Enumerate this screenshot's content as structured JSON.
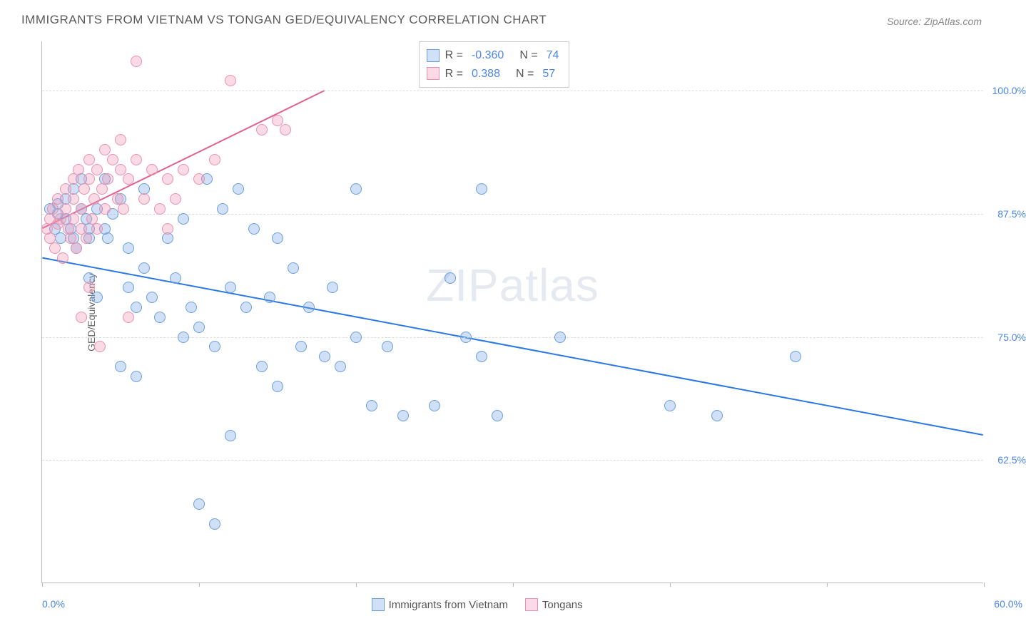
{
  "title": "IMMIGRANTS FROM VIETNAM VS TONGAN GED/EQUIVALENCY CORRELATION CHART",
  "source": "Source: ZipAtlas.com",
  "watermark_a": "ZIP",
  "watermark_b": "atlas",
  "chart": {
    "type": "scatter",
    "ylabel": "GED/Equivalency",
    "xlim": [
      0,
      60
    ],
    "ylim": [
      50,
      105
    ],
    "xtick_positions": [
      0,
      10,
      20,
      30,
      40,
      50,
      60
    ],
    "x_axis_left_label": "0.0%",
    "x_axis_right_label": "60.0%",
    "y_gridlines": [
      62.5,
      75.0,
      87.5,
      100.0
    ],
    "y_labels": [
      "62.5%",
      "75.0%",
      "87.5%",
      "100.0%"
    ],
    "grid_color": "#dddddd",
    "axis_color": "#bbbbbb",
    "background_color": "#ffffff",
    "tick_label_color": "#4a86e8",
    "marker_radius": 8,
    "marker_border_width": 1,
    "trend_line_width": 2,
    "series": [
      {
        "name": "Immigrants from Vietnam",
        "fill_color": "rgba(120,165,230,0.35)",
        "stroke_color": "#6a9edb",
        "trend_color": "#2b78e4",
        "r": "-0.360",
        "n": "74",
        "trend": {
          "x1": 0,
          "y1": 83,
          "x2": 60,
          "y2": 65
        },
        "points": [
          [
            0.5,
            88
          ],
          [
            0.8,
            86
          ],
          [
            1,
            87.5
          ],
          [
            1,
            88.5
          ],
          [
            1.2,
            85
          ],
          [
            1.5,
            89
          ],
          [
            1.5,
            87
          ],
          [
            1.8,
            86
          ],
          [
            2,
            85
          ],
          [
            2,
            90
          ],
          [
            2.2,
            84
          ],
          [
            2.5,
            88
          ],
          [
            2.5,
            91
          ],
          [
            2.8,
            87
          ],
          [
            3,
            86
          ],
          [
            3,
            85
          ],
          [
            3,
            81
          ],
          [
            3.5,
            88
          ],
          [
            3.5,
            79
          ],
          [
            4,
            86
          ],
          [
            4,
            91
          ],
          [
            4.2,
            85
          ],
          [
            4.5,
            87.5
          ],
          [
            5,
            72
          ],
          [
            5,
            89
          ],
          [
            5.5,
            80
          ],
          [
            5.5,
            84
          ],
          [
            6,
            71
          ],
          [
            6,
            78
          ],
          [
            6.5,
            90
          ],
          [
            6.5,
            82
          ],
          [
            7,
            79
          ],
          [
            7.5,
            77
          ],
          [
            8,
            85
          ],
          [
            8.5,
            81
          ],
          [
            9,
            75
          ],
          [
            9,
            87
          ],
          [
            9.5,
            78
          ],
          [
            10,
            76
          ],
          [
            10,
            58
          ],
          [
            10.5,
            91
          ],
          [
            11,
            74
          ],
          [
            11,
            56
          ],
          [
            11.5,
            88
          ],
          [
            12,
            80
          ],
          [
            12,
            65
          ],
          [
            12.5,
            90
          ],
          [
            13,
            78
          ],
          [
            13.5,
            86
          ],
          [
            14,
            72
          ],
          [
            14.5,
            79
          ],
          [
            15,
            85
          ],
          [
            15,
            70
          ],
          [
            16,
            82
          ],
          [
            16.5,
            74
          ],
          [
            17,
            78
          ],
          [
            18,
            73
          ],
          [
            18.5,
            80
          ],
          [
            19,
            72
          ],
          [
            20,
            75
          ],
          [
            20,
            90
          ],
          [
            21,
            68
          ],
          [
            22,
            74
          ],
          [
            23,
            67
          ],
          [
            25,
            68
          ],
          [
            26,
            81
          ],
          [
            27,
            75
          ],
          [
            28,
            73
          ],
          [
            28,
            90
          ],
          [
            29,
            67
          ],
          [
            33,
            75
          ],
          [
            40,
            68
          ],
          [
            43,
            67
          ],
          [
            48,
            73
          ]
        ]
      },
      {
        "name": "Tongans",
        "fill_color": "rgba(240,150,180,0.35)",
        "stroke_color": "#e891b0",
        "trend_color": "#e06290",
        "r": "0.388",
        "n": "57",
        "trend": {
          "x1": 0,
          "y1": 86,
          "x2": 18,
          "y2": 100
        },
        "points": [
          [
            0.3,
            86
          ],
          [
            0.5,
            87
          ],
          [
            0.5,
            85
          ],
          [
            0.7,
            88
          ],
          [
            0.8,
            84
          ],
          [
            1,
            86.5
          ],
          [
            1,
            89
          ],
          [
            1.2,
            87
          ],
          [
            1.3,
            83
          ],
          [
            1.5,
            88
          ],
          [
            1.5,
            90
          ],
          [
            1.7,
            86
          ],
          [
            1.8,
            85
          ],
          [
            2,
            89
          ],
          [
            2,
            87
          ],
          [
            2,
            91
          ],
          [
            2.2,
            84
          ],
          [
            2.3,
            92
          ],
          [
            2.5,
            88
          ],
          [
            2.5,
            86
          ],
          [
            2.5,
            77
          ],
          [
            2.7,
            90
          ],
          [
            2.8,
            85
          ],
          [
            3,
            91
          ],
          [
            3,
            93
          ],
          [
            3,
            80
          ],
          [
            3.2,
            87
          ],
          [
            3.3,
            89
          ],
          [
            3.5,
            92
          ],
          [
            3.5,
            86
          ],
          [
            3.7,
            74
          ],
          [
            3.8,
            90
          ],
          [
            4,
            94
          ],
          [
            4,
            88
          ],
          [
            4.2,
            91
          ],
          [
            4.5,
            93
          ],
          [
            4.8,
            89
          ],
          [
            5,
            92
          ],
          [
            5,
            95
          ],
          [
            5.2,
            88
          ],
          [
            5.5,
            77
          ],
          [
            5.5,
            91
          ],
          [
            6,
            103
          ],
          [
            6,
            93
          ],
          [
            6.5,
            89
          ],
          [
            7,
            92
          ],
          [
            7.5,
            88
          ],
          [
            8,
            91
          ],
          [
            8,
            86
          ],
          [
            8.5,
            89
          ],
          [
            9,
            92
          ],
          [
            10,
            91
          ],
          [
            11,
            93
          ],
          [
            12,
            101
          ],
          [
            14,
            96
          ],
          [
            15,
            97
          ],
          [
            15.5,
            96
          ]
        ]
      }
    ],
    "legend": [
      "Immigrants from Vietnam",
      "Tongans"
    ],
    "stats_box_labels": {
      "r": "R =",
      "n": "N ="
    }
  }
}
